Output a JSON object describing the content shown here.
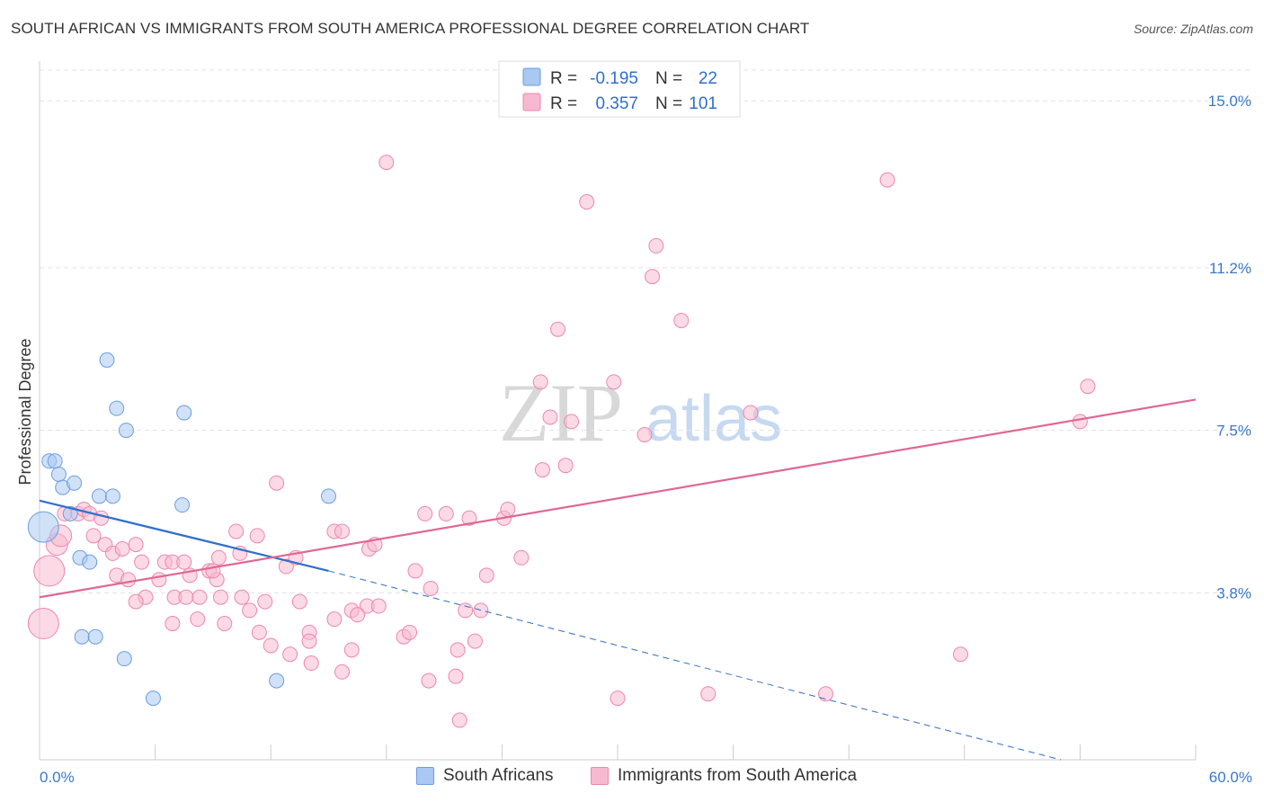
{
  "header": {
    "title": "SOUTH AFRICAN VS IMMIGRANTS FROM SOUTH AMERICA PROFESSIONAL DEGREE CORRELATION CHART",
    "source": "Source: ZipAtlas.com"
  },
  "watermark": {
    "zip": "ZIP",
    "atlas": "atlas"
  },
  "chart_data": {
    "type": "scatter",
    "title": "SOUTH AFRICAN VS IMMIGRANTS FROM SOUTH AMERICA PROFESSIONAL DEGREE CORRELATION CHART",
    "xlabel": "",
    "ylabel": "Professional Degree",
    "xlim": [
      0,
      60
    ],
    "ylim": [
      0,
      15.7
    ],
    "x_tick_labels": {
      "min": "0.0%",
      "max": "60.0%"
    },
    "y_ticks": [
      {
        "value": 3.8,
        "label": "3.8%"
      },
      {
        "value": 7.5,
        "label": "7.5%"
      },
      {
        "value": 11.2,
        "label": "11.2%"
      },
      {
        "value": 15.0,
        "label": "15.0%"
      }
    ],
    "grid": true,
    "legend_top": [
      {
        "swatch_color": "#a9c8f2",
        "r_label": "R =",
        "r_value": "-0.195",
        "n_label": "N =",
        "n_value": "22"
      },
      {
        "swatch_color": "#f7b9cf",
        "r_label": "R =",
        "r_value": "0.357",
        "n_label": "N =",
        "n_value": "101"
      }
    ],
    "series": [
      {
        "name": "South Africans",
        "color": "#a9c8f2",
        "stroke": "#6b9ee0",
        "trend": {
          "color": "#2e6fcf",
          "x0": 0,
          "y0": 5.9,
          "x1": 15,
          "y1": 4.3,
          "dash_x1": 53,
          "dash_y1": 0
        },
        "points": [
          [
            0.2,
            5.3,
            3
          ],
          [
            0.5,
            6.8,
            1
          ],
          [
            0.8,
            6.8,
            1
          ],
          [
            1.0,
            6.5,
            1
          ],
          [
            1.2,
            6.2,
            1
          ],
          [
            1.8,
            6.3,
            1
          ],
          [
            1.6,
            5.6,
            1
          ],
          [
            3.1,
            6.0,
            1
          ],
          [
            3.8,
            6.0,
            1
          ],
          [
            3.5,
            9.1,
            1
          ],
          [
            4.0,
            8.0,
            1
          ],
          [
            4.5,
            7.5,
            1
          ],
          [
            7.5,
            7.9,
            1
          ],
          [
            7.4,
            5.8,
            1
          ],
          [
            2.1,
            4.6,
            1
          ],
          [
            2.6,
            4.5,
            1
          ],
          [
            2.2,
            2.8,
            1
          ],
          [
            2.9,
            2.8,
            1
          ],
          [
            4.4,
            2.3,
            1
          ],
          [
            5.9,
            1.4,
            1
          ],
          [
            12.3,
            1.8,
            1
          ],
          [
            15.0,
            6.0,
            1
          ]
        ]
      },
      {
        "name": "Immigrants from South America",
        "color": "#f7b9cf",
        "stroke": "#ec88ab",
        "trend": {
          "color": "#e06891",
          "x0": 0,
          "y0": 3.7,
          "x1": 60,
          "y1": 8.2
        },
        "points": [
          [
            0.2,
            3.1,
            3
          ],
          [
            0.5,
            4.3,
            3
          ],
          [
            0.9,
            4.9,
            2
          ],
          [
            1.1,
            5.1,
            2
          ],
          [
            1.3,
            5.6,
            1
          ],
          [
            2.0,
            5.6,
            1
          ],
          [
            2.3,
            5.7,
            1
          ],
          [
            2.6,
            5.6,
            1
          ],
          [
            3.2,
            5.5,
            1
          ],
          [
            2.8,
            5.1,
            1
          ],
          [
            3.4,
            4.9,
            1
          ],
          [
            3.8,
            4.7,
            1
          ],
          [
            4.3,
            4.8,
            1
          ],
          [
            5.0,
            4.9,
            1
          ],
          [
            5.3,
            4.5,
            1
          ],
          [
            4.0,
            4.2,
            1
          ],
          [
            4.6,
            4.1,
            1
          ],
          [
            6.2,
            4.1,
            1
          ],
          [
            6.5,
            4.5,
            1
          ],
          [
            6.9,
            4.5,
            1
          ],
          [
            7.5,
            4.5,
            1
          ],
          [
            7.8,
            4.2,
            1
          ],
          [
            8.8,
            4.3,
            1
          ],
          [
            9.2,
            4.1,
            1
          ],
          [
            9.0,
            4.3,
            1
          ],
          [
            9.3,
            4.6,
            1
          ],
          [
            10.2,
            5.2,
            1
          ],
          [
            10.4,
            4.7,
            1
          ],
          [
            11.3,
            5.1,
            1
          ],
          [
            12.3,
            6.3,
            1
          ],
          [
            12.8,
            4.4,
            1
          ],
          [
            13.3,
            4.6,
            1
          ],
          [
            15.3,
            5.2,
            1
          ],
          [
            15.7,
            5.2,
            1
          ],
          [
            17.1,
            4.8,
            1
          ],
          [
            17.4,
            4.9,
            1
          ],
          [
            17.0,
            3.5,
            1
          ],
          [
            19.5,
            4.3,
            1
          ],
          [
            20.0,
            5.6,
            1
          ],
          [
            21.1,
            5.6,
            1
          ],
          [
            22.3,
            5.5,
            1
          ],
          [
            24.1,
            5.5,
            1
          ],
          [
            24.3,
            5.7,
            1
          ],
          [
            25.0,
            4.6,
            1
          ],
          [
            23.2,
            4.2,
            1
          ],
          [
            20.3,
            3.9,
            1
          ],
          [
            7.0,
            3.7,
            1
          ],
          [
            7.6,
            3.7,
            1
          ],
          [
            5.5,
            3.7,
            1
          ],
          [
            5.0,
            3.6,
            1
          ],
          [
            9.4,
            3.7,
            1
          ],
          [
            10.5,
            3.7,
            1
          ],
          [
            11.7,
            3.6,
            1
          ],
          [
            13.5,
            3.6,
            1
          ],
          [
            14.0,
            2.9,
            1
          ],
          [
            15.3,
            3.2,
            1
          ],
          [
            16.2,
            3.4,
            1
          ],
          [
            16.5,
            3.3,
            1
          ],
          [
            17.6,
            3.5,
            1
          ],
          [
            18.9,
            2.8,
            1
          ],
          [
            19.2,
            2.9,
            1
          ],
          [
            8.2,
            3.2,
            1
          ],
          [
            9.6,
            3.1,
            1
          ],
          [
            10.9,
            3.4,
            1
          ],
          [
            11.4,
            2.9,
            1
          ],
          [
            12.0,
            2.6,
            1
          ],
          [
            13.0,
            2.4,
            1
          ],
          [
            14.0,
            2.7,
            1
          ],
          [
            14.1,
            2.2,
            1
          ],
          [
            16.2,
            2.5,
            1
          ],
          [
            15.7,
            2.0,
            1
          ],
          [
            20.2,
            1.8,
            1
          ],
          [
            21.6,
            1.9,
            1
          ],
          [
            21.7,
            2.5,
            1
          ],
          [
            22.1,
            3.4,
            1
          ],
          [
            22.9,
            3.4,
            1
          ],
          [
            22.6,
            2.7,
            1
          ],
          [
            21.8,
            0.9,
            1
          ],
          [
            26.1,
            6.6,
            1
          ],
          [
            27.3,
            6.7,
            1
          ],
          [
            27.6,
            7.7,
            1
          ],
          [
            26.5,
            7.8,
            1
          ],
          [
            26.0,
            8.6,
            1
          ],
          [
            29.8,
            8.6,
            1
          ],
          [
            26.9,
            9.8,
            1
          ],
          [
            28.4,
            12.7,
            1
          ],
          [
            18.0,
            13.6,
            1
          ],
          [
            32.0,
            11.7,
            1
          ],
          [
            31.8,
            11.0,
            1
          ],
          [
            33.3,
            10.0,
            1
          ],
          [
            31.4,
            7.4,
            1
          ],
          [
            36.9,
            7.9,
            1
          ],
          [
            44.0,
            13.2,
            1
          ],
          [
            30.0,
            1.4,
            1
          ],
          [
            34.7,
            1.5,
            1
          ],
          [
            40.8,
            1.5,
            1
          ],
          [
            47.8,
            2.4,
            1
          ],
          [
            54.0,
            7.7,
            1
          ],
          [
            54.4,
            8.5,
            1
          ],
          [
            6.9,
            3.1,
            1
          ],
          [
            8.3,
            3.7,
            1
          ]
        ]
      }
    ]
  },
  "legend_bottom": [
    {
      "label": "South Africans",
      "color": "#a9c8f2",
      "stroke": "#6b9ee0"
    },
    {
      "label": "Immigrants from South America",
      "color": "#f7b9cf",
      "stroke": "#ec88ab"
    }
  ]
}
